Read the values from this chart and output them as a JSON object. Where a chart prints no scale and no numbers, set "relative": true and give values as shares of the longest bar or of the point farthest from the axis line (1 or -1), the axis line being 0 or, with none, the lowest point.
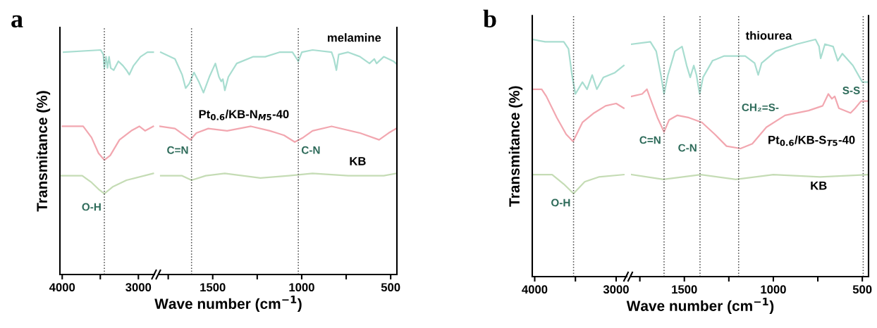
{
  "chart_data": [
    {
      "type": "line",
      "title": "a",
      "ylabel": "Transmitance (%)",
      "relative": true,
      "xlim": [
        4030,
        2790
      ],
      "xticks": [
        4000,
        {
          "value": 3500,
          "label": null
        },
        3000
      ],
      "series": [
        {
          "color": "#a8ddd0",
          "x": [
            3982,
            3495,
            3460,
            3447,
            3425,
            3406,
            3385,
            3364,
            3324,
            3263,
            3202,
            3156,
            3119,
            3064,
            2972,
            2881,
            2805
          ],
          "values": [
            0.99,
            1.0,
            0.98,
            0.92,
            0.97,
            0.92,
            0.97,
            0.92,
            0.91,
            0.95,
            0.93,
            0.91,
            0.89,
            0.93,
            0.97,
            0.99,
            0.99
          ]
        },
        {
          "color": "#f2a7b0",
          "x": [
            3997,
            3725,
            3615,
            3523,
            3447,
            3370,
            3248,
            3094,
            2988,
            2911,
            2805
          ],
          "values": [
            0.66,
            0.66,
            0.61,
            0.54,
            0.51,
            0.53,
            0.6,
            0.64,
            0.66,
            0.64,
            0.66
          ]
        },
        {
          "color": "#c5dcb5",
          "x": [
            4028,
            3737,
            3615,
            3523,
            3447,
            3339,
            3156,
            2805
          ],
          "values": [
            0.44,
            0.44,
            0.41,
            0.38,
            0.36,
            0.39,
            0.42,
            0.45
          ]
        }
      ],
      "ref_lines": [
        {
          "axis": "x",
          "value": 3447,
          "label": "O-H",
          "color": "#444444",
          "line_style": "dotted"
        }
      ]
    },
    {
      "type": "line",
      "xlabel": "Wave number (cm$^{−1}$)",
      "relative": true,
      "xlim": [
        1800,
        465
      ],
      "xticks": [
        {
          "value": 1750,
          "label": null
        },
        1500,
        {
          "value": 1250,
          "label": null
        },
        1000,
        {
          "value": 750,
          "label": null
        },
        500
      ],
      "series": [
        {
          "name": "melamine",
          "color": "#a8ddd0",
          "x": [
            1792,
            1712,
            1672,
            1652,
            1632,
            1605,
            1579,
            1552,
            1519,
            1485,
            1465,
            1452,
            1443,
            1432,
            1412,
            1365,
            1272,
            1205,
            1125,
            1052,
            1019,
            999,
            939,
            832,
            819,
            805,
            792,
            739,
            672,
            619,
            592,
            579,
            539,
            485,
            470
          ],
          "values": [
            0.99,
            0.96,
            0.89,
            0.83,
            0.85,
            0.9,
            0.86,
            0.81,
            0.88,
            0.94,
            0.88,
            0.86,
            0.87,
            0.82,
            0.88,
            0.94,
            0.97,
            0.97,
            0.99,
            0.99,
            0.95,
            0.99,
            1.0,
            0.99,
            0.96,
            0.91,
            0.98,
            0.99,
            0.97,
            0.94,
            0.96,
            0.94,
            0.97,
            0.95,
            0.94
          ]
        },
        {
          "name": "Pt$_{0.6}$/KB-N$_{M5}$-40",
          "color": "#f2a7b0",
          "x": [
            1799,
            1712,
            1659,
            1625,
            1592,
            1525,
            1419,
            1285,
            1179,
            1139,
            1099,
            1039,
            992,
            939,
            832,
            672,
            565,
            512,
            470
          ],
          "values": [
            0.66,
            0.65,
            0.62,
            0.6,
            0.63,
            0.65,
            0.64,
            0.66,
            0.64,
            0.63,
            0.62,
            0.59,
            0.61,
            0.64,
            0.66,
            0.63,
            0.6,
            0.63,
            0.65
          ]
        },
        {
          "name": "KB",
          "color": "#c5dcb5",
          "x": [
            1792,
            1672,
            1619,
            1539,
            1432,
            1232,
            1072,
            939,
            739,
            539,
            470
          ],
          "values": [
            0.44,
            0.44,
            0.42,
            0.44,
            0.45,
            0.43,
            0.44,
            0.45,
            0.44,
            0.44,
            0.45
          ]
        }
      ],
      "ref_lines": [
        {
          "axis": "x",
          "value": 1619,
          "label": "C=N",
          "color": "#444444",
          "line_style": "dotted"
        },
        {
          "axis": "x",
          "value": 1019,
          "label": "C-N",
          "color": "#444444",
          "line_style": "dotted"
        }
      ]
    },
    {
      "type": "line",
      "title": "b",
      "ylabel": "Transmitance (%)",
      "relative": true,
      "xlim": [
        4030,
        2870
      ],
      "xticks": [
        4000,
        {
          "value": 3500,
          "label": null
        },
        3000
      ],
      "series": [
        {
          "color": "#a8ddd0",
          "x": [
            4028,
            3871,
            3643,
            3585,
            3542,
            3500,
            3414,
            3357,
            3294,
            3237,
            3157,
            3015,
            2906
          ],
          "values": [
            1.0,
            0.99,
            0.99,
            0.96,
            0.85,
            0.77,
            0.82,
            0.79,
            0.85,
            0.79,
            0.84,
            0.86,
            0.89
          ]
        },
        {
          "color": "#f2a7b0",
          "x": [
            4028,
            3914,
            3857,
            3728,
            3614,
            3529,
            3414,
            3271,
            3129,
            3000,
            2906
          ],
          "values": [
            0.79,
            0.79,
            0.76,
            0.67,
            0.6,
            0.57,
            0.65,
            0.69,
            0.72,
            0.73,
            0.71
          ]
        },
        {
          "color": "#c5dcb5",
          "x": [
            4028,
            3786,
            3643,
            3523,
            3386,
            3214,
            2906
          ],
          "values": [
            0.43,
            0.43,
            0.39,
            0.35,
            0.4,
            0.42,
            0.43
          ]
        }
      ],
      "ref_lines": [
        {
          "axis": "x",
          "value": 3523,
          "label": "O-H",
          "color": "#444444",
          "line_style": "dotted"
        }
      ]
    },
    {
      "type": "line",
      "xlabel": "Wave number (cm$^{−1}$)",
      "relative": true,
      "xlim": [
        1800,
        465
      ],
      "xticks": [
        {
          "value": 1750,
          "label": null
        },
        1500,
        {
          "value": 1250,
          "label": null
        },
        1000,
        {
          "value": 750,
          "label": null
        },
        500
      ],
      "series": [
        {
          "name": "thiourea",
          "color": "#a8ddd0",
          "x": [
            1796,
            1691,
            1658,
            1632,
            1614,
            1592,
            1553,
            1513,
            1487,
            1467,
            1447,
            1432,
            1414,
            1395,
            1342,
            1276,
            1158,
            1105,
            1085,
            1066,
            987,
            868,
            763,
            743,
            734,
            710,
            664,
            638,
            612,
            553,
            500,
            470
          ],
          "values": [
            0.98,
            0.99,
            0.95,
            0.85,
            0.77,
            0.85,
            0.95,
            0.97,
            0.89,
            0.84,
            0.89,
            0.85,
            0.77,
            0.84,
            0.91,
            0.93,
            0.93,
            0.9,
            0.85,
            0.9,
            0.95,
            0.98,
            1.0,
            0.97,
            0.92,
            0.98,
            0.97,
            0.91,
            0.94,
            0.89,
            0.82,
            0.82
          ]
        },
        {
          "name": "Pt$_{0.6}$/KB-S$_{T5}$-40",
          "color": "#f2a7b0",
          "x": [
            1796,
            1737,
            1710,
            1691,
            1651,
            1614,
            1586,
            1539,
            1474,
            1401,
            1329,
            1263,
            1184,
            1118,
            1039,
            934,
            802,
            723,
            691,
            671,
            655,
            632,
            566,
            540,
            507,
            470
          ],
          "values": [
            0.76,
            0.77,
            0.79,
            0.75,
            0.67,
            0.61,
            0.66,
            0.68,
            0.67,
            0.65,
            0.6,
            0.55,
            0.54,
            0.56,
            0.63,
            0.68,
            0.7,
            0.72,
            0.77,
            0.75,
            0.76,
            0.71,
            0.69,
            0.71,
            0.74,
            0.74
          ]
        },
        {
          "name": "KB",
          "color": "#c5dcb5",
          "x": [
            1796,
            1618,
            1408,
            1211,
            1000,
            737,
            470
          ],
          "values": [
            0.43,
            0.41,
            0.43,
            0.41,
            0.43,
            0.42,
            0.43
          ]
        }
      ],
      "ref_lines": [
        {
          "axis": "x",
          "value": 1614,
          "label": "C=N",
          "color": "#444444",
          "line_style": "dotted"
        },
        {
          "axis": "x",
          "value": 1412,
          "label": "C-N",
          "color": "#444444",
          "line_style": "dotted"
        },
        {
          "axis": "x",
          "value": 1195,
          "label": "CH₂=S-",
          "color": "#444444",
          "line_style": "dotted"
        },
        {
          "axis": "x",
          "value": 495,
          "label": "S-S",
          "color": "#444444",
          "line_style": "dotted"
        }
      ]
    }
  ]
}
